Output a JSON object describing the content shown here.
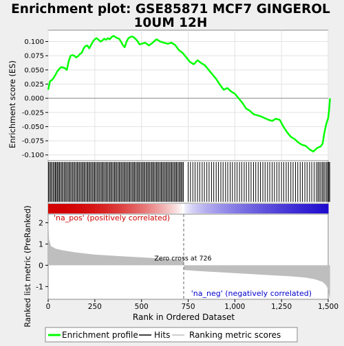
{
  "chart_data": {
    "type": "line",
    "title": "Enrichment plot: GSE85871 MCF7 GINGEROL 10UM 12H",
    "title_lines": [
      "Enrichment plot: GSE85871 MCF7 GINGEROL",
      "10UM 12H"
    ],
    "xlabel": "Rank in Ordered Dataset",
    "xlim": [
      0,
      1500
    ],
    "x_ticks": [
      0,
      250,
      500,
      750,
      1000,
      1250,
      1500
    ],
    "x_tick_labels": [
      "0",
      "250",
      "500",
      "750",
      "1,000",
      "1,250",
      "1,500"
    ],
    "es_panel": {
      "ylabel": "Enrichment score (ES)",
      "ylim": [
        -0.11,
        0.12
      ],
      "y_ticks": [
        0.1,
        0.075,
        0.05,
        0.025,
        0.0,
        -0.025,
        -0.05,
        -0.075,
        -0.1
      ],
      "y_tick_labels": [
        "0.100",
        "0.075",
        "0.050",
        "0.025",
        "0.000",
        "-0.025",
        "-0.050",
        "-0.075",
        "-0.100"
      ],
      "series": [
        {
          "name": "Enrichment profile",
          "color": "#00ff00",
          "x": [
            0,
            10,
            20,
            30,
            40,
            50,
            60,
            70,
            80,
            90,
            100,
            110,
            120,
            130,
            140,
            150,
            160,
            170,
            180,
            190,
            200,
            210,
            220,
            230,
            240,
            250,
            260,
            270,
            280,
            290,
            300,
            310,
            320,
            330,
            340,
            350,
            360,
            370,
            380,
            390,
            400,
            410,
            420,
            430,
            440,
            450,
            460,
            470,
            480,
            490,
            500,
            520,
            540,
            560,
            580,
            600,
            620,
            640,
            660,
            680,
            700,
            720,
            740,
            760,
            780,
            800,
            820,
            840,
            860,
            880,
            900,
            920,
            940,
            960,
            980,
            1000,
            1020,
            1040,
            1060,
            1080,
            1100,
            1120,
            1140,
            1160,
            1180,
            1200,
            1220,
            1240,
            1260,
            1280,
            1300,
            1320,
            1340,
            1360,
            1380,
            1400,
            1420,
            1440,
            1460,
            1470,
            1480,
            1490,
            1500,
            1505,
            1510
          ],
          "y": [
            0.015,
            0.03,
            0.032,
            0.036,
            0.042,
            0.048,
            0.052,
            0.055,
            0.054,
            0.053,
            0.05,
            0.065,
            0.075,
            0.076,
            0.075,
            0.072,
            0.074,
            0.078,
            0.08,
            0.088,
            0.092,
            0.093,
            0.088,
            0.094,
            0.1,
            0.104,
            0.106,
            0.103,
            0.1,
            0.102,
            0.105,
            0.103,
            0.106,
            0.104,
            0.108,
            0.11,
            0.108,
            0.106,
            0.105,
            0.1,
            0.094,
            0.09,
            0.1,
            0.106,
            0.108,
            0.109,
            0.107,
            0.104,
            0.1,
            0.095,
            0.096,
            0.098,
            0.093,
            0.098,
            0.104,
            0.1,
            0.098,
            0.096,
            0.098,
            0.094,
            0.085,
            0.08,
            0.072,
            0.064,
            0.06,
            0.067,
            0.062,
            0.058,
            0.05,
            0.042,
            0.034,
            0.024,
            0.015,
            0.018,
            0.012,
            0.008,
            0.0,
            -0.008,
            -0.018,
            -0.022,
            -0.028,
            -0.03,
            -0.032,
            -0.035,
            -0.038,
            -0.04,
            -0.036,
            -0.038,
            -0.05,
            -0.06,
            -0.068,
            -0.072,
            -0.078,
            -0.082,
            -0.084,
            -0.09,
            -0.094,
            -0.088,
            -0.085,
            -0.08,
            -0.06,
            -0.045,
            -0.035,
            -0.02,
            0.0
          ]
        }
      ],
      "zero_line": 0.0
    },
    "hits_panel": {
      "hit_ranks": [
        2,
        8,
        14,
        20,
        27,
        33,
        39,
        44,
        50,
        56,
        61,
        68,
        74,
        80,
        87,
        93,
        99,
        106,
        112,
        118,
        124,
        131,
        137,
        143,
        150,
        156,
        162,
        168,
        175,
        181,
        187,
        193,
        199,
        206,
        212,
        218,
        224,
        230,
        237,
        243,
        249,
        255,
        262,
        268,
        274,
        281,
        287,
        293,
        299,
        306,
        312,
        318,
        325,
        331,
        337,
        343,
        350,
        356,
        362,
        368,
        375,
        381,
        387,
        393,
        400,
        406,
        412,
        418,
        425,
        431,
        437,
        443,
        450,
        456,
        462,
        468,
        475,
        481,
        487,
        493,
        500,
        506,
        512,
        518,
        525,
        531,
        537,
        543,
        550,
        556,
        562,
        568,
        575,
        581,
        587,
        593,
        600,
        606,
        612,
        618,
        625,
        631,
        637,
        643,
        650,
        656,
        662,
        668,
        675,
        681,
        687,
        693,
        700,
        706,
        712,
        718,
        724,
        750,
        762,
        775,
        787,
        800,
        812,
        825,
        837,
        850,
        862,
        875,
        887,
        900,
        912,
        925,
        937,
        950,
        962,
        975,
        987,
        1000,
        1012,
        1025,
        1037,
        1050,
        1062,
        1075,
        1087,
        1100,
        1112,
        1125,
        1137,
        1150,
        1162,
        1175,
        1187,
        1200,
        1212,
        1225,
        1237,
        1250,
        1262,
        1275,
        1287,
        1300,
        1312,
        1325,
        1337,
        1350,
        1362,
        1375,
        1387,
        1400,
        1412,
        1425,
        1437,
        1445,
        1452,
        1460,
        1468,
        1475,
        1482,
        1490,
        1497,
        1503,
        1508
      ]
    },
    "heatmap_panel": {
      "colormap": [
        "#d40000",
        "#ffffff",
        "#1010d0"
      ],
      "pos_label": "'na_pos' (positively correlated)",
      "neg_label": "'na_neg' (negatively correlated)"
    },
    "rank_panel": {
      "ylabel": "Ranked list metric (PreRanked)",
      "ylim": [
        -1.6,
        2.4
      ],
      "y_ticks": [
        2,
        1,
        0,
        -1
      ],
      "y_tick_labels": [
        "2",
        "1",
        "0",
        "-1"
      ],
      "zero_cross": 726,
      "zero_cross_label": "Zero cross at 726",
      "metric_profile": {
        "x": [
          0,
          5,
          15,
          40,
          80,
          150,
          250,
          400,
          550,
          700,
          726,
          727,
          800,
          900,
          1000,
          1100,
          1200,
          1300,
          1380,
          1430,
          1470,
          1490,
          1500,
          1505,
          1510
        ],
        "y": [
          2.1,
          1.2,
          0.9,
          0.78,
          0.7,
          0.6,
          0.5,
          0.42,
          0.35,
          0.25,
          0.2,
          -0.22,
          -0.27,
          -0.32,
          -0.37,
          -0.42,
          -0.47,
          -0.52,
          -0.58,
          -0.66,
          -0.78,
          -0.95,
          -1.15,
          -1.4,
          -1.55
        ]
      }
    },
    "legend": {
      "items": [
        {
          "name": "Enrichment profile",
          "color": "#00ff00"
        },
        {
          "name": "Hits",
          "color": "#000000"
        },
        {
          "name": "Ranking metric scores",
          "color": "#bebebe"
        }
      ]
    }
  }
}
